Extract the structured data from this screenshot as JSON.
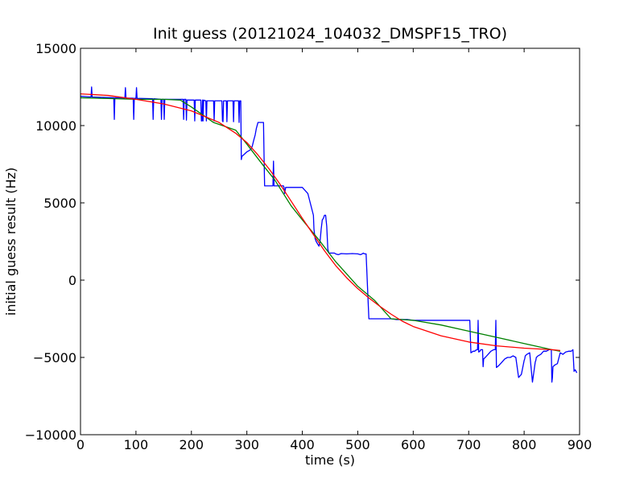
{
  "chart_data": {
    "type": "line",
    "title": "Init guess (20121024_104032_DMSPF15_TRO)",
    "xlabel": "time (s)",
    "ylabel": "initial guess result (Hz)",
    "xlim": [
      0,
      900
    ],
    "ylim": [
      -10000,
      15000
    ],
    "xticks": [
      0,
      100,
      200,
      300,
      400,
      500,
      600,
      700,
      800,
      900
    ],
    "yticks": [
      -10000,
      -5000,
      0,
      5000,
      10000,
      15000
    ],
    "xtick_labels": [
      "0",
      "100",
      "200",
      "300",
      "400",
      "500",
      "600",
      "700",
      "800",
      "900"
    ],
    "ytick_labels": [
      "−10000",
      "−5000",
      "0",
      "5000",
      "10000",
      "15000"
    ],
    "grid": false,
    "legend": "none",
    "series": [
      {
        "color": "#0000ff",
        "x": [
          0,
          19,
          20,
          21,
          60,
          61,
          62,
          80,
          81,
          82,
          95,
          96,
          97,
          100,
          101,
          102,
          130,
          131,
          132,
          145,
          146,
          147,
          150,
          151,
          152,
          185,
          186,
          187,
          190,
          191,
          192,
          205,
          206,
          207,
          217,
          218,
          219,
          220,
          221,
          222,
          226,
          227,
          228,
          240,
          241,
          242,
          255,
          256,
          257,
          258,
          263,
          264,
          265,
          275,
          276,
          277,
          285,
          286,
          287,
          289,
          290,
          291,
          300,
          305,
          308,
          310,
          312,
          315,
          317,
          320,
          322,
          325,
          326,
          329,
          330,
          331,
          332,
          335,
          337,
          340,
          343,
          345,
          346,
          347,
          348,
          349,
          350,
          351,
          355,
          365,
          366,
          367,
          368,
          370,
          372,
          390,
          391,
          392,
          393,
          400,
          410,
          420,
          421,
          422,
          423,
          425,
          430,
          432,
          434,
          436,
          438,
          440,
          442,
          444,
          446,
          448,
          450,
          452,
          454,
          456,
          458,
          460,
          465,
          470,
          480,
          490,
          500,
          505,
          508,
          510,
          512,
          515,
          520,
          535,
          540,
          545,
          550,
          555,
          560,
          570,
          580,
          590,
          600,
          610,
          620,
          640,
          660,
          680,
          700,
          701,
          702,
          704,
          706,
          708,
          710,
          711,
          712,
          715,
          716,
          717,
          718,
          720,
          722,
          725,
          726,
          727,
          730,
          735,
          740,
          745,
          746,
          747,
          748,
          749,
          750,
          752,
          755,
          760,
          765,
          770,
          775,
          780,
          785,
          790,
          795,
          800,
          801,
          802,
          805,
          810,
          815,
          820,
          821,
          822,
          825,
          830,
          835,
          840,
          845,
          849,
          850,
          851,
          852,
          855,
          860,
          865,
          870,
          875,
          880,
          885,
          888,
          890,
          892,
          895
        ],
        "y": [
          11900,
          11850,
          12500,
          11850,
          11800,
          10400,
          11800,
          11780,
          12450,
          11780,
          11770,
          10400,
          11770,
          11760,
          12450,
          11760,
          11740,
          10400,
          11740,
          11700,
          10400,
          11700,
          11700,
          10400,
          11700,
          11700,
          10400,
          11700,
          11700,
          10350,
          11650,
          11650,
          10300,
          11650,
          11650,
          10300,
          10300,
          11650,
          10300,
          11650,
          11600,
          10300,
          11600,
          11600,
          10300,
          11600,
          11600,
          10300,
          10250,
          11600,
          11600,
          10250,
          11600,
          11600,
          10250,
          11600,
          11600,
          10200,
          11600,
          11600,
          7800,
          8000,
          8300,
          8400,
          8500,
          8700,
          9000,
          9400,
          9800,
          10200,
          10200,
          10200,
          10200,
          10200,
          10200,
          8000,
          6100,
          6100,
          6100,
          6100,
          6100,
          6100,
          6100,
          6100,
          7700,
          6100,
          6100,
          6100,
          6100,
          6100,
          6100,
          6000,
          5600,
          6000,
          6000,
          6000,
          6000,
          6000,
          6000,
          6000,
          5600,
          4200,
          3300,
          3000,
          2700,
          2500,
          2200,
          2500,
          3300,
          3900,
          4000,
          4200,
          4200,
          3500,
          2000,
          1750,
          1750,
          1750,
          1750,
          1750,
          1750,
          1700,
          1650,
          1720,
          1700,
          1720,
          1700,
          1650,
          1700,
          1750,
          1700,
          1700,
          -2500,
          -2500,
          -2500,
          -2500,
          -2500,
          -2500,
          -2500,
          -2550,
          -2550,
          -2550,
          -2600,
          -2600,
          -2600,
          -2600,
          -2600,
          -2600,
          -2600,
          -2600,
          -2600,
          -4700,
          -4650,
          -4600,
          -4600,
          -4600,
          -4550,
          -4500,
          -4500,
          -2600,
          -4650,
          -4600,
          -4500,
          -4500,
          -5600,
          -5100,
          -5000,
          -4800,
          -4600,
          -4500,
          -4500,
          -4500,
          -4500,
          -2600,
          -5650,
          -5600,
          -5500,
          -5300,
          -5100,
          -5000,
          -5000,
          -4900,
          -5000,
          -6300,
          -6100,
          -5200,
          -5100,
          -4900,
          -4800,
          -4700,
          -6600,
          -5300,
          -5200,
          -5000,
          -4900,
          -4800,
          -4600,
          -4600,
          -4500,
          -4500,
          -6600,
          -6300,
          -5600,
          -5500,
          -5400,
          -4700,
          -4800,
          -4650,
          -4600,
          -4600,
          -4500,
          -5900,
          -5800,
          -6000
        ]
      },
      {
        "color": "#008000",
        "x": [
          0,
          50,
          100,
          150,
          180,
          200,
          240,
          280,
          300,
          330,
          350,
          380,
          400,
          430,
          460,
          500,
          530,
          560,
          600,
          650,
          700,
          750,
          800,
          850,
          865
        ],
        "y": [
          11800,
          11750,
          11700,
          11700,
          11650,
          11200,
          10200,
          9700,
          8800,
          7400,
          6500,
          4800,
          3900,
          2600,
          1200,
          -400,
          -1300,
          -2500,
          -2600,
          -2900,
          -3300,
          -3700,
          -4100,
          -4500,
          -4600
        ]
      },
      {
        "color": "#ff0000",
        "x": [
          0,
          50,
          100,
          150,
          200,
          250,
          280,
          300,
          320,
          340,
          360,
          380,
          400,
          420,
          440,
          460,
          480,
          500,
          520,
          540,
          560,
          580,
          600,
          650,
          700,
          750,
          800,
          850,
          865
        ],
        "y": [
          12050,
          11950,
          11700,
          11400,
          10950,
          10200,
          9500,
          8900,
          8100,
          7200,
          6200,
          5100,
          4000,
          2950,
          1900,
          950,
          150,
          -550,
          -1150,
          -1700,
          -2200,
          -2650,
          -3000,
          -3600,
          -4000,
          -4250,
          -4400,
          -4500,
          -4550
        ]
      }
    ]
  }
}
